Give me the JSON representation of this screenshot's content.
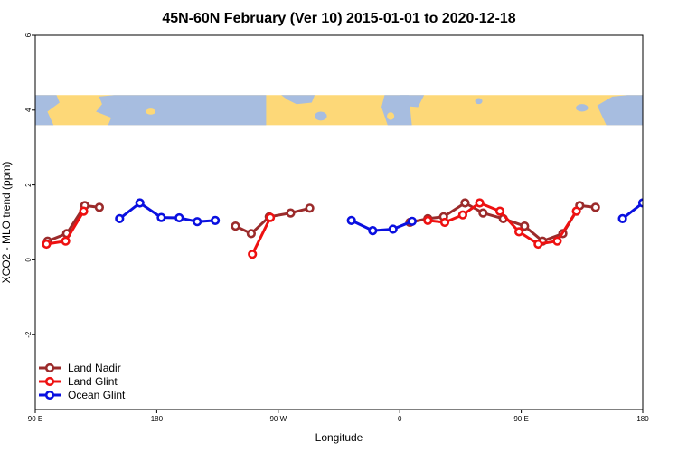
{
  "chart_data": {
    "type": "line",
    "title": "45N-60N February (Ver 10)   2015-01-01 to 2020-12-18",
    "xlabel": "Longitude",
    "ylabel": "XCO2 - MLO trend (ppm)",
    "xlim": [
      -90,
      450
    ],
    "ylim": [
      -4,
      6
    ],
    "yticks": [
      -2,
      0,
      2,
      4,
      6
    ],
    "yticklabels": [
      "-2",
      "0",
      "2",
      "4",
      "6"
    ],
    "xticks": [
      -90,
      18,
      126,
      234,
      342,
      450
    ],
    "xticklabels": [
      "90 E",
      "180",
      "90 W",
      "0",
      "90 E",
      "180"
    ],
    "grid": false,
    "legend_position": "bottom-left",
    "map_band": {
      "y_range": [
        3.6,
        4.4
      ],
      "ocean_color": "#a7bde0",
      "land_color": "#fdd878"
    },
    "series": [
      {
        "name": "Land Nadir",
        "color": "#9b2b2b",
        "segments": [
          [
            [
              -79,
              0.5
            ],
            [
              -62,
              0.7
            ],
            [
              -46,
              1.45
            ],
            [
              -33,
              1.4
            ]
          ],
          [
            [
              88,
              0.9
            ],
            [
              102,
              0.7
            ],
            [
              118,
              1.15
            ],
            [
              137,
              1.25
            ],
            [
              154,
              1.38
            ]
          ],
          [
            [
              243,
              1.0
            ],
            [
              259,
              1.1
            ],
            [
              273,
              1.15
            ],
            [
              292,
              1.52
            ],
            [
              308,
              1.25
            ],
            [
              326,
              1.1
            ],
            [
              345,
              0.9
            ],
            [
              361,
              0.5
            ],
            [
              379,
              0.7
            ],
            [
              394,
              1.45
            ],
            [
              408,
              1.4
            ]
          ]
        ]
      },
      {
        "name": "Land Glint",
        "color": "#ee1111",
        "segments": [
          [
            [
              -80,
              0.42
            ],
            [
              -63,
              0.5
            ],
            [
              -47,
              1.3
            ]
          ],
          [
            [
              103,
              0.15
            ],
            [
              119,
              1.13
            ]
          ],
          [
            [
              259,
              1.05
            ],
            [
              274,
              1.0
            ],
            [
              290,
              1.2
            ],
            [
              305,
              1.52
            ],
            [
              323,
              1.3
            ],
            [
              340,
              0.75
            ],
            [
              357,
              0.42
            ],
            [
              374,
              0.5
            ],
            [
              391,
              1.3
            ]
          ]
        ]
      },
      {
        "name": "Ocean Glint",
        "color": "#0a10e0",
        "segments": [
          [
            [
              -15,
              1.1
            ],
            [
              3,
              1.52
            ],
            [
              22,
              1.13
            ],
            [
              38,
              1.12
            ],
            [
              54,
              1.02
            ],
            [
              70,
              1.05
            ]
          ],
          [
            [
              191,
              1.05
            ],
            [
              210,
              0.78
            ],
            [
              228,
              0.82
            ],
            [
              245,
              1.03
            ]
          ],
          [
            [
              432,
              1.1
            ],
            [
              450,
              1.52
            ]
          ]
        ]
      }
    ]
  }
}
